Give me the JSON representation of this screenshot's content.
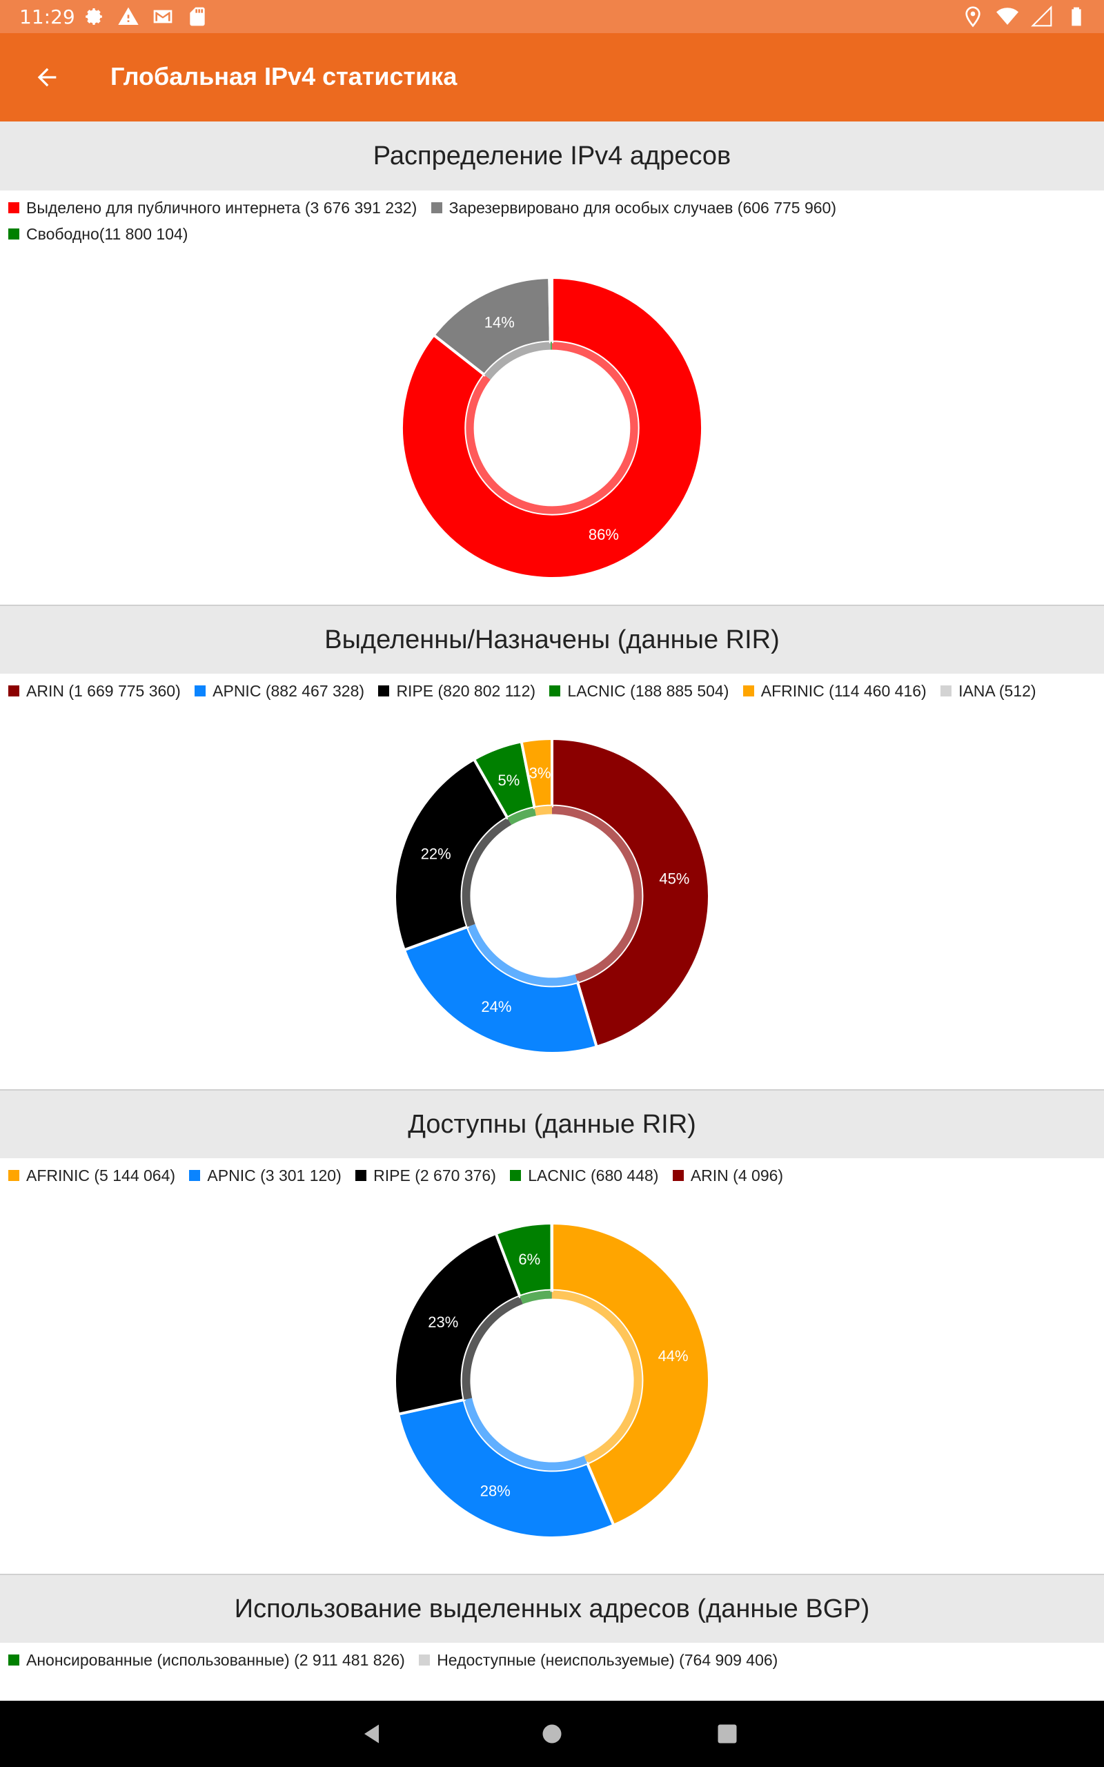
{
  "status_bar": {
    "time": "11:29",
    "icons_left": [
      "gear-icon",
      "warning-icon",
      "gmail-icon",
      "sd-card-icon"
    ],
    "icons_right": [
      "location-icon",
      "wifi-icon",
      "signal-icon",
      "battery-icon"
    ]
  },
  "app_bar": {
    "title": "Глобальная IPv4 статистика",
    "back_icon": "arrow-left-icon",
    "color": "#ec6a1f"
  },
  "sections": [
    {
      "title": "Распределение IPv4 адресов",
      "legend": [
        {
          "label": "Выделено для публичного интернета (3 676 391 232)",
          "color": "#ff0000"
        },
        {
          "label": "Зарезервировано для особых случаев (606 775 960)",
          "color": "#808080"
        },
        {
          "label": "Свободно(11 800 104)",
          "color": "#008000"
        }
      ]
    },
    {
      "title": "Выделенны/Назначены (данные RIR)",
      "legend": [
        {
          "label": "ARIN (1 669 775 360)",
          "color": "#8b0000"
        },
        {
          "label": "APNIC (882 467 328)",
          "color": "#0a84ff"
        },
        {
          "label": "RIPE (820 802 112)",
          "color": "#000000"
        },
        {
          "label": "LACNIC (188 885 504)",
          "color": "#008000"
        },
        {
          "label": "AFRINIC (114 460 416)",
          "color": "#ffa500"
        },
        {
          "label": "IANA (512)",
          "color": "#d3d3d3"
        }
      ]
    },
    {
      "title": "Доступны (данные RIR)",
      "legend": [
        {
          "label": "AFRINIC (5 144 064)",
          "color": "#ffa500"
        },
        {
          "label": "APNIC (3 301 120)",
          "color": "#0a84ff"
        },
        {
          "label": "RIPE (2 670 376)",
          "color": "#000000"
        },
        {
          "label": "LACNIC (680 448)",
          "color": "#008000"
        },
        {
          "label": "ARIN (4 096)",
          "color": "#8b0000"
        }
      ]
    },
    {
      "title": "Использование выделенных адресов (данные BGP)",
      "legend": [
        {
          "label": "Анонсированные (использованные) (2 911 481 826)",
          "color": "#008000"
        },
        {
          "label": "Недоступные (неиспользуемые) (764 909 406)",
          "color": "#d3d3d3"
        }
      ]
    }
  ],
  "chart_data": [
    {
      "type": "pie",
      "title": "Распределение IPv4 адресов",
      "categories": [
        "Выделено для публичного интернета",
        "Зарезервировано для особых случаев",
        "Свободно"
      ],
      "values": [
        3676391232,
        606775960,
        11800104
      ],
      "colors": [
        "#ff0000",
        "#808080",
        "#008000"
      ],
      "labels": [
        "86%",
        "14%",
        ""
      ]
    },
    {
      "type": "pie",
      "title": "Выделенны/Назначены (данные RIR)",
      "categories": [
        "ARIN",
        "APNIC",
        "RIPE",
        "LACNIC",
        "AFRINIC",
        "IANA"
      ],
      "values": [
        1669775360,
        882467328,
        820802112,
        188885504,
        114460416,
        512
      ],
      "colors": [
        "#8b0000",
        "#0a84ff",
        "#000000",
        "#008000",
        "#ffa500",
        "#d3d3d3"
      ],
      "labels": [
        "45%",
        "24%",
        "22%",
        "5%",
        "3%",
        ""
      ]
    },
    {
      "type": "pie",
      "title": "Доступны (данные RIR)",
      "categories": [
        "AFRINIC",
        "APNIC",
        "RIPE",
        "LACNIC",
        "ARIN"
      ],
      "values": [
        5144064,
        3301120,
        2670376,
        680448,
        4096
      ],
      "colors": [
        "#ffa500",
        "#0a84ff",
        "#000000",
        "#008000",
        "#8b0000"
      ],
      "labels": [
        "44%",
        "28%",
        "23%",
        "6%",
        ""
      ]
    }
  ]
}
